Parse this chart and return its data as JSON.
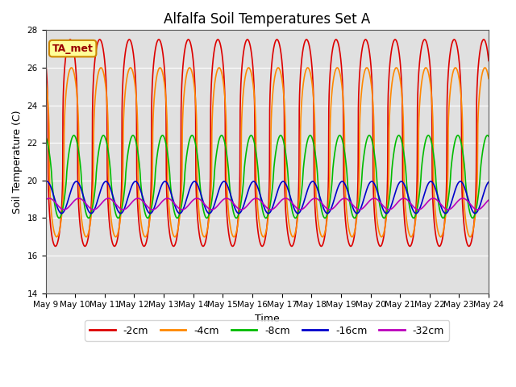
{
  "title": "Alfalfa Soil Temperatures Set A",
  "xlabel": "Time",
  "ylabel": "Soil Temperature (C)",
  "ylim": [
    14,
    28
  ],
  "xlim_days": [
    9,
    24
  ],
  "annotation_label": "TA_met",
  "series_labels": [
    "-2cm",
    "-4cm",
    "-8cm",
    "-16cm",
    "-32cm"
  ],
  "series_colors": [
    "#dd0000",
    "#ff8800",
    "#00bb00",
    "#0000cc",
    "#bb00bb"
  ],
  "series_linewidths": [
    1.2,
    1.2,
    1.2,
    1.2,
    1.2
  ],
  "background_color": "#e0e0e0",
  "tick_label_fontsize": 7.5,
  "axis_label_fontsize": 9,
  "title_fontsize": 12,
  "legend_fontsize": 9,
  "grid_color": "#ffffff",
  "x_tick_days": [
    9,
    10,
    11,
    12,
    13,
    14,
    15,
    16,
    17,
    18,
    19,
    20,
    21,
    22,
    23,
    24
  ],
  "x_tick_labels": [
    "May 9",
    "May 10",
    "May 11",
    "May 12",
    "May 13",
    "May 14",
    "May 15",
    "May 16",
    "May 17",
    "May 18",
    "May 19",
    "May 20",
    "May 21",
    "May 22",
    "May 23",
    "May 24"
  ],
  "y_ticks": [
    14,
    16,
    18,
    20,
    22,
    24,
    26,
    28
  ],
  "series_params": [
    {
      "mean": 22.0,
      "amp": 5.5,
      "phase_hours": 14,
      "sharpness": 3.0,
      "period": 24
    },
    {
      "mean": 21.5,
      "amp": 4.5,
      "phase_hours": 15,
      "sharpness": 2.5,
      "period": 24
    },
    {
      "mean": 20.2,
      "amp": 2.2,
      "phase_hours": 17,
      "sharpness": 1.3,
      "period": 24
    },
    {
      "mean": 19.1,
      "amp": 0.85,
      "phase_hours": 19,
      "sharpness": 1.0,
      "period": 24
    },
    {
      "mean": 18.75,
      "amp": 0.3,
      "phase_hours": 21,
      "sharpness": 1.0,
      "period": 24
    }
  ]
}
